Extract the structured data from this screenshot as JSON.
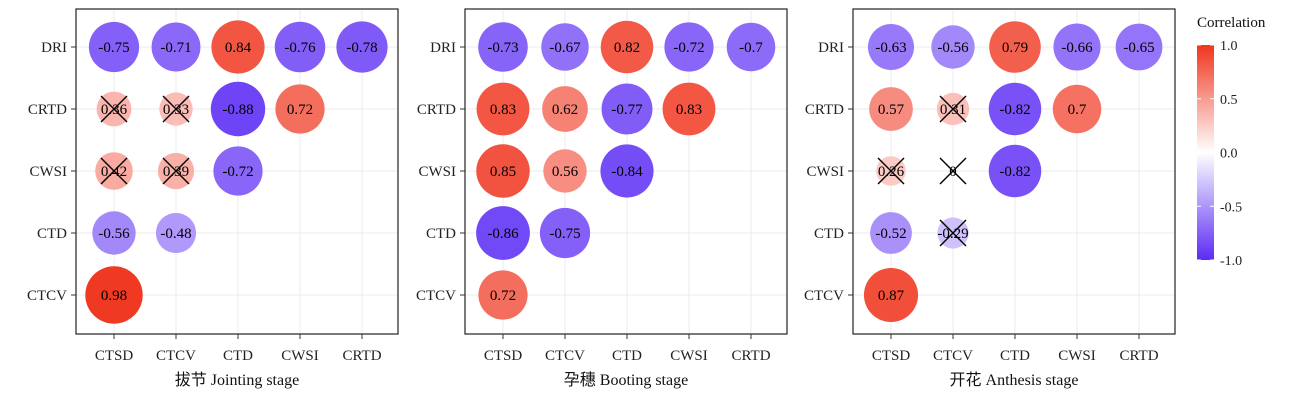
{
  "chart_data": [
    {
      "type": "correlation-bubble",
      "title": "拔节 Jointing stage",
      "x_categories": [
        "CTSD",
        "CTCV",
        "CTD",
        "CWSI",
        "CRTD"
      ],
      "y_categories": [
        "DRI",
        "CRTD",
        "CWSI",
        "CTD",
        "CTCV"
      ],
      "cells": [
        {
          "y": "DRI",
          "x": "CTSD",
          "value": -0.75,
          "label": "-0.75",
          "crossed": false
        },
        {
          "y": "DRI",
          "x": "CTCV",
          "value": -0.71,
          "label": "-0.71",
          "crossed": false
        },
        {
          "y": "DRI",
          "x": "CTD",
          "value": 0.84,
          "label": "0.84",
          "crossed": false
        },
        {
          "y": "DRI",
          "x": "CWSI",
          "value": -0.76,
          "label": "-0.76",
          "crossed": false
        },
        {
          "y": "DRI",
          "x": "CRTD",
          "value": -0.78,
          "label": "-0.78",
          "crossed": false
        },
        {
          "y": "CRTD",
          "x": "CTSD",
          "value": 0.36,
          "label": "0.36",
          "crossed": true
        },
        {
          "y": "CRTD",
          "x": "CTCV",
          "value": 0.33,
          "label": "0.33",
          "crossed": true
        },
        {
          "y": "CRTD",
          "x": "CTD",
          "value": -0.88,
          "label": "-0.88",
          "crossed": false
        },
        {
          "y": "CRTD",
          "x": "CWSI",
          "value": 0.72,
          "label": "0.72",
          "crossed": false
        },
        {
          "y": "CWSI",
          "x": "CTSD",
          "value": 0.42,
          "label": "0.42",
          "crossed": true
        },
        {
          "y": "CWSI",
          "x": "CTCV",
          "value": 0.39,
          "label": "0.39",
          "crossed": true
        },
        {
          "y": "CWSI",
          "x": "CTD",
          "value": -0.72,
          "label": "-0.72",
          "crossed": false
        },
        {
          "y": "CTD",
          "x": "CTSD",
          "value": -0.56,
          "label": "-0.56",
          "crossed": false
        },
        {
          "y": "CTD",
          "x": "CTCV",
          "value": -0.48,
          "label": "-0.48",
          "crossed": false
        },
        {
          "y": "CTCV",
          "x": "CTSD",
          "value": 0.98,
          "label": "0.98",
          "crossed": false
        }
      ]
    },
    {
      "type": "correlation-bubble",
      "title": "孕穗 Booting stage",
      "x_categories": [
        "CTSD",
        "CTCV",
        "CTD",
        "CWSI",
        "CRTD"
      ],
      "y_categories": [
        "DRI",
        "CRTD",
        "CWSI",
        "CTD",
        "CTCV"
      ],
      "cells": [
        {
          "y": "DRI",
          "x": "CTSD",
          "value": -0.73,
          "label": "-0.73",
          "crossed": false
        },
        {
          "y": "DRI",
          "x": "CTCV",
          "value": -0.67,
          "label": "-0.67",
          "crossed": false
        },
        {
          "y": "DRI",
          "x": "CTD",
          "value": 0.82,
          "label": "0.82",
          "crossed": false
        },
        {
          "y": "DRI",
          "x": "CWSI",
          "value": -0.72,
          "label": "-0.72",
          "crossed": false
        },
        {
          "y": "DRI",
          "x": "CRTD",
          "value": -0.7,
          "label": "-0.7",
          "crossed": false
        },
        {
          "y": "CRTD",
          "x": "CTSD",
          "value": 0.83,
          "label": "0.83",
          "crossed": false
        },
        {
          "y": "CRTD",
          "x": "CTCV",
          "value": 0.62,
          "label": "0.62",
          "crossed": false
        },
        {
          "y": "CRTD",
          "x": "CTD",
          "value": -0.77,
          "label": "-0.77",
          "crossed": false
        },
        {
          "y": "CRTD",
          "x": "CWSI",
          "value": 0.83,
          "label": "0.83",
          "crossed": false
        },
        {
          "y": "CWSI",
          "x": "CTSD",
          "value": 0.85,
          "label": "0.85",
          "crossed": false
        },
        {
          "y": "CWSI",
          "x": "CTCV",
          "value": 0.56,
          "label": "0.56",
          "crossed": false
        },
        {
          "y": "CWSI",
          "x": "CTD",
          "value": -0.84,
          "label": "-0.84",
          "crossed": false
        },
        {
          "y": "CTD",
          "x": "CTSD",
          "value": -0.86,
          "label": "-0.86",
          "crossed": false
        },
        {
          "y": "CTD",
          "x": "CTCV",
          "value": -0.75,
          "label": "-0.75",
          "crossed": false
        },
        {
          "y": "CTCV",
          "x": "CTSD",
          "value": 0.72,
          "label": "0.72",
          "crossed": false
        }
      ]
    },
    {
      "type": "correlation-bubble",
      "title": "开花 Anthesis stage",
      "x_categories": [
        "CTSD",
        "CTCV",
        "CTD",
        "CWSI",
        "CRTD"
      ],
      "y_categories": [
        "DRI",
        "CRTD",
        "CWSI",
        "CTD",
        "CTCV"
      ],
      "cells": [
        {
          "y": "DRI",
          "x": "CTSD",
          "value": -0.63,
          "label": "-0.63",
          "crossed": false
        },
        {
          "y": "DRI",
          "x": "CTCV",
          "value": -0.56,
          "label": "-0.56",
          "crossed": false
        },
        {
          "y": "DRI",
          "x": "CTD",
          "value": 0.79,
          "label": "0.79",
          "crossed": false
        },
        {
          "y": "DRI",
          "x": "CWSI",
          "value": -0.66,
          "label": "-0.66",
          "crossed": false
        },
        {
          "y": "DRI",
          "x": "CRTD",
          "value": -0.65,
          "label": "-0.65",
          "crossed": false
        },
        {
          "y": "CRTD",
          "x": "CTSD",
          "value": 0.57,
          "label": "0.57",
          "crossed": false
        },
        {
          "y": "CRTD",
          "x": "CTCV",
          "value": 0.31,
          "label": "0.31",
          "crossed": true
        },
        {
          "y": "CRTD",
          "x": "CTD",
          "value": -0.82,
          "label": "-0.82",
          "crossed": false
        },
        {
          "y": "CRTD",
          "x": "CWSI",
          "value": 0.7,
          "label": "0.7",
          "crossed": false
        },
        {
          "y": "CWSI",
          "x": "CTSD",
          "value": 0.26,
          "label": "0.26",
          "crossed": true
        },
        {
          "y": "CWSI",
          "x": "CTCV",
          "value": 0,
          "label": "0",
          "crossed": true
        },
        {
          "y": "CWSI",
          "x": "CTD",
          "value": -0.82,
          "label": "-0.82",
          "crossed": false
        },
        {
          "y": "CTD",
          "x": "CTSD",
          "value": -0.52,
          "label": "-0.52",
          "crossed": false
        },
        {
          "y": "CTD",
          "x": "CTCV",
          "value": -0.29,
          "label": "-0.29",
          "crossed": true
        },
        {
          "y": "CTCV",
          "x": "CTSD",
          "value": 0.87,
          "label": "0.87",
          "crossed": false
        }
      ]
    }
  ],
  "legend": {
    "title": "Correlation",
    "ticks": [
      "1.0",
      "0.5",
      "0.0",
      "-0.5",
      "-1.0"
    ],
    "tick_values": [
      1.0,
      0.5,
      0.0,
      -0.5,
      -1.0
    ],
    "color_low": "#5b2bf5",
    "color_mid": "#ffffff",
    "color_high": "#f0351e",
    "range": [
      -1,
      1
    ]
  }
}
